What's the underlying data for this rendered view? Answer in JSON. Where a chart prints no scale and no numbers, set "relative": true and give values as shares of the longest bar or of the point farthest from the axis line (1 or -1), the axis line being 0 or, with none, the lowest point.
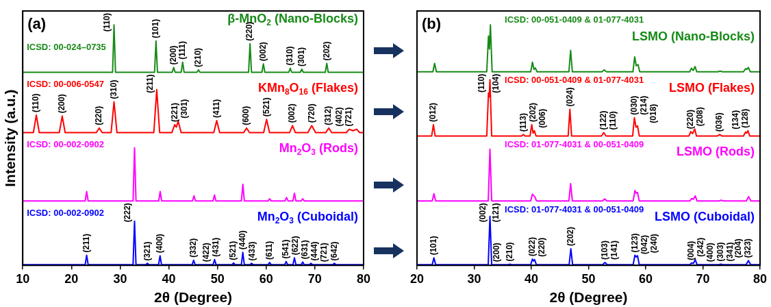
{
  "chart_data": [
    {
      "type": "line",
      "title": "(a)",
      "xlabel": "2θ (Degree)",
      "ylabel": "Intensity (a.u.)",
      "relative": true,
      "marker": "none",
      "xlim": [
        10,
        80
      ],
      "xticks": [
        10,
        20,
        30,
        40,
        50,
        60,
        70,
        80
      ],
      "series": [
        {
          "name": "β-MnO$_{2}$ (Nano-Blocks)",
          "color": "#168a16",
          "x": [
            10,
            28.45,
            28.75,
            29.05,
            37.07,
            37.37,
            37.67,
            40.7,
            41.0,
            41.3,
            42.54,
            42.84,
            43.14,
            45.79,
            46.09,
            46.39,
            56.38,
            56.68,
            56.98,
            59.12,
            59.42,
            59.72,
            64.64,
            64.94,
            65.24,
            67.02,
            67.32,
            67.62,
            72.14,
            72.44,
            72.74,
            80
          ],
          "values": [
            0.803,
            0.803,
            1.0,
            0.803,
            0.803,
            0.933,
            0.803,
            0.803,
            0.823,
            0.803,
            0.803,
            0.845,
            0.803,
            0.803,
            0.813,
            0.803,
            0.803,
            0.922,
            0.803,
            0.803,
            0.838,
            0.803,
            0.803,
            0.82,
            0.803,
            0.803,
            0.816,
            0.803,
            0.803,
            0.84,
            0.803,
            0.803
          ]
        },
        {
          "name": "KMn$_{8}$O$_{16}$ (Flakes)",
          "color": "#ff0000",
          "x": [
            10,
            12.19,
            12.79,
            13.39,
            17.51,
            18.11,
            18.71,
            25.11,
            25.71,
            26.31,
            28.15,
            28.75,
            29.35,
            36.92,
            37.52,
            38.12,
            40.62,
            41.22,
            41.55,
            41.93,
            42.53,
            49.24,
            49.84,
            50.44,
            55.37,
            55.97,
            56.57,
            59.48,
            60.08,
            60.68,
            64.8,
            65.4,
            66.0,
            68.55,
            69.35,
            70.15,
            72.25,
            72.85,
            73.45,
            76.45,
            77.05,
            77.8,
            78.58,
            79.2,
            80
          ],
          "values": [
            0.552,
            0.552,
            0.625,
            0.552,
            0.552,
            0.621,
            0.552,
            0.552,
            0.571,
            0.552,
            0.552,
            0.68,
            0.552,
            0.552,
            0.731,
            0.552,
            0.552,
            0.585,
            0.575,
            0.6,
            0.552,
            0.552,
            0.602,
            0.552,
            0.552,
            0.571,
            0.552,
            0.552,
            0.607,
            0.552,
            0.552,
            0.581,
            0.552,
            0.552,
            0.581,
            0.552,
            0.552,
            0.571,
            0.552,
            0.552,
            0.566,
            0.56,
            0.566,
            0.552,
            0.552
          ]
        },
        {
          "name": "Mn$_{2}$O$_{3}$ (Rods)",
          "color": "#ff00ff",
          "x": [
            10,
            22.83,
            23.13,
            23.43,
            32.66,
            32.96,
            33.26,
            37.93,
            38.23,
            38.53,
            44.87,
            45.17,
            45.47,
            49.08,
            49.38,
            49.68,
            54.91,
            55.21,
            55.51,
            60.4,
            60.7,
            61.0,
            63.88,
            64.18,
            64.48,
            65.5,
            65.8,
            66.1,
            67.2,
            67.5,
            67.8,
            80
          ],
          "values": [
            0.268,
            0.268,
            0.307,
            0.268,
            0.268,
            0.489,
            0.268,
            0.268,
            0.307,
            0.268,
            0.268,
            0.289,
            0.268,
            0.268,
            0.293,
            0.268,
            0.268,
            0.337,
            0.268,
            0.268,
            0.277,
            0.268,
            0.268,
            0.282,
            0.268,
            0.268,
            0.3,
            0.268,
            0.268,
            0.277,
            0.268,
            0.268
          ]
        },
        {
          "name": "Mn$_{2}$O$_{3}$ (Cuboidal)",
          "color": "#0000ff",
          "x": [
            10,
            22.83,
            23.13,
            23.43,
            32.66,
            32.96,
            33.26,
            35.3,
            35.6,
            35.9,
            37.9,
            38.2,
            38.5,
            44.8,
            45.1,
            45.4,
            49.1,
            49.4,
            49.7,
            53.0,
            53.3,
            53.6,
            54.9,
            55.2,
            55.5,
            56.7,
            57.0,
            57.3,
            60.4,
            60.7,
            61.0,
            63.8,
            64.1,
            64.4,
            65.5,
            65.8,
            66.1,
            67.2,
            67.5,
            67.8,
            68.9,
            69.2,
            69.5,
            73.7,
            74.0,
            74.3,
            80
          ],
          "values": [
            0.003,
            0.003,
            0.042,
            0.003,
            0.003,
            0.184,
            0.003,
            0.003,
            0.008,
            0.003,
            0.003,
            0.04,
            0.003,
            0.003,
            0.021,
            0.003,
            0.003,
            0.024,
            0.003,
            0.003,
            0.01,
            0.003,
            0.003,
            0.054,
            0.003,
            0.003,
            0.008,
            0.003,
            0.003,
            0.012,
            0.003,
            0.003,
            0.016,
            0.003,
            0.003,
            0.031,
            0.003,
            0.003,
            0.014,
            0.003,
            0.003,
            0.008,
            0.003,
            0.003,
            0.008,
            0.003,
            0.003
          ]
        }
      ],
      "annotations": [
        "ICSD: 00-024–0735",
        "ICSD: 00-006-0547",
        "ICSD: 00-002-0902",
        "ICSD: 00-002-0902",
        {
          "text": "(110)",
          "x": 28.75,
          "y": 1.0
        },
        {
          "text": "(101)",
          "x": 37.37,
          "y": 0.933
        },
        {
          "text": "(200)",
          "x": 41.0,
          "y": 0.823
        },
        {
          "text": "(111)",
          "x": 42.84,
          "y": 0.845
        },
        {
          "text": "(210)",
          "x": 46.09,
          "y": 0.813
        },
        {
          "text": "(220)",
          "x": 56.68,
          "y": 0.922
        },
        {
          "text": "(002)",
          "x": 59.42,
          "y": 0.838
        },
        {
          "text": "(310)",
          "x": 64.94,
          "y": 0.82
        },
        {
          "text": "(301)",
          "x": 67.32,
          "y": 0.816
        },
        {
          "text": "(202)",
          "x": 72.44,
          "y": 0.84
        },
        {
          "text": "(110)",
          "x": 12.79,
          "y": 0.625
        },
        {
          "text": "(200)",
          "x": 18.11,
          "y": 0.621
        },
        {
          "text": "(220)",
          "x": 25.71,
          "y": 0.571
        },
        {
          "text": "(310)",
          "x": 28.75,
          "y": 0.68
        },
        {
          "text": "(211)",
          "x": 37.52,
          "y": 0.731
        },
        {
          "text": "(221)",
          "x": 41.22,
          "y": 0.585
        },
        {
          "text": "(301)",
          "x": 41.93,
          "y": 0.6
        },
        {
          "text": "(411)",
          "x": 49.84,
          "y": 0.602
        },
        {
          "text": "(600)",
          "x": 55.97,
          "y": 0.571
        },
        {
          "text": "(521)",
          "x": 60.08,
          "y": 0.607
        },
        {
          "text": "(002)",
          "x": 65.4,
          "y": 0.581
        },
        {
          "text": "(720)",
          "x": 69.35,
          "y": 0.581
        },
        {
          "text": "(312)",
          "x": 72.85,
          "y": 0.571
        },
        {
          "text": "(402)",
          "x": 77.05,
          "y": 0.566
        },
        {
          "text": "(721)",
          "x": 78.58,
          "y": 0.566
        },
        {
          "text": "(211)",
          "x": 23.13,
          "y": 0.042
        },
        {
          "text": "(222)",
          "x": 32.96,
          "y": 0.184
        },
        {
          "text": "(321)",
          "x": 35.6,
          "y": 0.008
        },
        {
          "text": "(400)",
          "x": 38.2,
          "y": 0.04
        },
        {
          "text": "(332)",
          "x": 45.1,
          "y": 0.021
        },
        {
          "text": "(422)",
          "x": 47.76,
          "y": 0.003
        },
        {
          "text": "(431)",
          "x": 49.4,
          "y": 0.024
        },
        {
          "text": "(521)",
          "x": 53.3,
          "y": 0.01
        },
        {
          "text": "(440)",
          "x": 55.2,
          "y": 0.054
        },
        {
          "text": "(433)",
          "x": 57.0,
          "y": 0.008
        },
        {
          "text": "(611)",
          "x": 60.7,
          "y": 0.012
        },
        {
          "text": "(541)",
          "x": 64.1,
          "y": 0.016
        },
        {
          "text": "(622)",
          "x": 65.8,
          "y": 0.031
        },
        {
          "text": "(631)",
          "x": 67.5,
          "y": 0.014
        },
        {
          "text": "(444)",
          "x": 69.2,
          "y": 0.008
        },
        {
          "text": "(721)",
          "x": 72.0,
          "y": 0.003
        },
        {
          "text": "(642)",
          "x": 74.0,
          "y": 0.008
        }
      ]
    },
    {
      "type": "line",
      "title": "(b)",
      "xlabel": "2θ (Degree)",
      "relative": true,
      "marker": "none",
      "xlim": [
        20,
        80
      ],
      "xticks": [
        20,
        30,
        40,
        50,
        60,
        70,
        80
      ],
      "series": [
        {
          "name": "LSMO (Nano-Blocks)",
          "color": "#168a16",
          "x": [
            20,
            22.78,
            23.08,
            23.38,
            32.2,
            32.5,
            32.67,
            32.84,
            33.14,
            39.89,
            40.19,
            40.45,
            40.7,
            41.0,
            46.57,
            46.87,
            47.17,
            52.34,
            52.74,
            53.14,
            57.77,
            58.07,
            58.35,
            58.66,
            58.96,
            67.7,
            68.0,
            68.3,
            68.63,
            68.93,
            72.62,
            73.02,
            73.42,
            77.1,
            77.46,
            77.7,
            77.96,
            78.3,
            80
          ],
          "values": [
            0.805,
            0.805,
            0.84,
            0.805,
            0.805,
            0.954,
            0.9,
            1.0,
            0.805,
            0.805,
            0.845,
            0.815,
            0.821,
            0.805,
            0.805,
            0.894,
            0.805,
            0.805,
            0.813,
            0.805,
            0.805,
            0.867,
            0.83,
            0.835,
            0.805,
            0.805,
            0.82,
            0.81,
            0.827,
            0.805,
            0.805,
            0.808,
            0.805,
            0.805,
            0.818,
            0.815,
            0.823,
            0.805,
            0.805
          ]
        },
        {
          "name": "LSMO (Flakes)",
          "color": "#ff0000",
          "x": [
            20,
            22.57,
            22.87,
            23.17,
            32.2,
            32.5,
            32.63,
            32.76,
            33.06,
            38.3,
            38.6,
            38.9,
            39.77,
            40.07,
            40.3,
            40.53,
            40.83,
            46.44,
            46.74,
            47.04,
            52.26,
            52.66,
            53.06,
            57.72,
            58.02,
            58.3,
            58.57,
            58.87,
            67.57,
            67.87,
            68.2,
            68.58,
            68.88,
            72.54,
            72.94,
            73.34,
            77.1,
            77.46,
            77.67,
            77.88,
            78.2,
            80
          ],
          "values": [
            0.538,
            0.538,
            0.585,
            0.538,
            0.538,
            0.717,
            0.7,
            0.772,
            0.538,
            0.538,
            0.544,
            0.538,
            0.538,
            0.585,
            0.55,
            0.56,
            0.538,
            0.538,
            0.649,
            0.538,
            0.538,
            0.552,
            0.538,
            0.538,
            0.614,
            0.575,
            0.58,
            0.538,
            0.538,
            0.556,
            0.548,
            0.567,
            0.538,
            0.538,
            0.544,
            0.538,
            0.538,
            0.554,
            0.55,
            0.56,
            0.538,
            0.538
          ]
        },
        {
          "name": "LSMO (Rods)",
          "color": "#ff00ff",
          "x": [
            20,
            22.66,
            22.96,
            23.26,
            32.46,
            32.76,
            33.06,
            39.89,
            40.19,
            40.6,
            40.9,
            46.57,
            46.87,
            47.17,
            52.43,
            52.83,
            53.23,
            57.81,
            58.11,
            58.35,
            58.57,
            58.87,
            67.74,
            68.04,
            68.35,
            68.67,
            68.97,
            72.8,
            73.2,
            73.6,
            77.6,
            78.0,
            78.4,
            80
          ],
          "values": [
            0.268,
            0.268,
            0.298,
            0.268,
            0.268,
            0.483,
            0.268,
            0.268,
            0.296,
            0.285,
            0.268,
            0.268,
            0.34,
            0.268,
            0.268,
            0.276,
            0.268,
            0.268,
            0.311,
            0.3,
            0.303,
            0.268,
            0.268,
            0.278,
            0.275,
            0.289,
            0.268,
            0.268,
            0.271,
            0.268,
            0.268,
            0.286,
            0.268,
            0.268
          ]
        },
        {
          "name": "LSMO (Cuboidal)",
          "color": "#0000ff",
          "x": [
            20,
            22.66,
            22.96,
            23.26,
            32.46,
            32.76,
            33.06,
            35.92,
            36.22,
            36.52,
            39.89,
            40.19,
            40.38,
            40.57,
            40.87,
            46.61,
            46.91,
            47.21,
            52.47,
            52.87,
            53.27,
            57.81,
            58.11,
            58.34,
            58.57,
            58.87,
            67.74,
            68.04,
            68.35,
            68.67,
            68.97,
            72.75,
            73.15,
            73.55,
            77.56,
            77.96,
            78.36,
            80
          ],
          "values": [
            0.003,
            0.003,
            0.031,
            0.003,
            0.003,
            0.204,
            0.003,
            0.003,
            0.005,
            0.003,
            0.003,
            0.026,
            0.018,
            0.024,
            0.003,
            0.003,
            0.069,
            0.003,
            0.003,
            0.012,
            0.003,
            0.003,
            0.042,
            0.035,
            0.04,
            0.003,
            0.003,
            0.01,
            0.008,
            0.024,
            0.003,
            0.003,
            0.005,
            0.003,
            0.003,
            0.02,
            0.003,
            0.003
          ]
        }
      ],
      "annotations": [
        "ICSD: 00-051-0409 & 01-077-4031",
        "ICSD: 00-051-0409 & 01-077-4031",
        "ICSD: 01-077-4031 & 00-051-0409",
        "ICSD: 01-077-4031 & 00-051-0409",
        {
          "text": "(012)",
          "x": 22.87,
          "y": 0.585
        },
        {
          "text": "(110)",
          "x": 32.5,
          "y": 0.717
        },
        {
          "text": "(104)",
          "x": 32.76,
          "y": 0.772
        },
        {
          "text": "(113)",
          "x": 38.6,
          "y": 0.544
        },
        {
          "text": "(202)",
          "x": 40.07,
          "y": 0.585
        },
        {
          "text": "(006)",
          "x": 40.53,
          "y": 0.56
        },
        {
          "text": "(024)",
          "x": 46.74,
          "y": 0.649
        },
        {
          "text": "(122)",
          "x": 52.66,
          "y": 0.552
        },
        {
          "text": "(110)",
          "x": 52.66,
          "y": 0.552
        },
        {
          "text": "(030)",
          "x": 58.02,
          "y": 0.614
        },
        {
          "text": "(214)",
          "x": 58.02,
          "y": 0.614
        },
        {
          "text": "(018)",
          "x": 58.57,
          "y": 0.58
        },
        {
          "text": "(220)",
          "x": 67.87,
          "y": 0.556
        },
        {
          "text": "(208)",
          "x": 68.58,
          "y": 0.567
        },
        {
          "text": "(036)",
          "x": 72.94,
          "y": 0.544
        },
        {
          "text": "(134)",
          "x": 77.46,
          "y": 0.554
        },
        {
          "text": "(128)",
          "x": 77.88,
          "y": 0.56
        },
        {
          "text": "(101)",
          "x": 22.96,
          "y": 0.031
        },
        {
          "text": "(002)",
          "x": 32.76,
          "y": 0.204
        },
        {
          "text": "(121)",
          "x": 32.76,
          "y": 0.204
        },
        {
          "text": "(200)",
          "x": 34.0,
          "y": 0.003
        },
        {
          "text": "(210)",
          "x": 36.22,
          "y": 0.005
        },
        {
          "text": "(022)",
          "x": 40.19,
          "y": 0.026
        },
        {
          "text": "(220)",
          "x": 40.57,
          "y": 0.024
        },
        {
          "text": "(202)",
          "x": 46.91,
          "y": 0.069
        },
        {
          "text": "(103)",
          "x": 52.87,
          "y": 0.012
        },
        {
          "text": "(141)",
          "x": 52.87,
          "y": 0.012
        },
        {
          "text": "(123)",
          "x": 58.11,
          "y": 0.042
        },
        {
          "text": "(042)",
          "x": 58.34,
          "y": 0.035
        },
        {
          "text": "(240)",
          "x": 58.57,
          "y": 0.04
        },
        {
          "text": "(004)",
          "x": 68.04,
          "y": 0.01
        },
        {
          "text": "(242)",
          "x": 68.67,
          "y": 0.024
        },
        {
          "text": "(400)",
          "x": 68.97,
          "y": 0.003
        },
        {
          "text": "(303)",
          "x": 73.15,
          "y": 0.005
        },
        {
          "text": "(341)",
          "x": 73.15,
          "y": 0.005
        },
        {
          "text": "(204)",
          "x": 77.96,
          "y": 0.02
        },
        {
          "text": "(323)",
          "x": 77.96,
          "y": 0.02
        }
      ]
    }
  ]
}
